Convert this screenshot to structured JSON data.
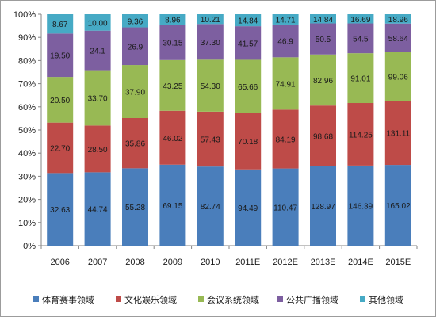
{
  "chart_data": {
    "type": "bar",
    "stacked": "percent",
    "categories": [
      "2006",
      "2007",
      "2008",
      "2009",
      "2010",
      "2011E",
      "2012E",
      "2013E",
      "2014E",
      "2015E"
    ],
    "series": [
      {
        "name": "体育赛事领域",
        "color": "#4a7ebb",
        "values": [
          32.63,
          44.74,
          55.28,
          69.15,
          82.74,
          94.49,
          110.47,
          128.97,
          146.39,
          165.02
        ]
      },
      {
        "name": "文化娱乐领域",
        "color": "#be4b48",
        "values": [
          22.7,
          28.5,
          35.86,
          46.02,
          57.43,
          70.18,
          84.19,
          98.68,
          114.25,
          131.11
        ]
      },
      {
        "name": "会议系统领域",
        "color": "#98b954",
        "values": [
          20.5,
          33.7,
          37.9,
          43.25,
          54.3,
          65.66,
          74.91,
          82.96,
          91.01,
          99.06
        ]
      },
      {
        "name": "公共广播领域",
        "color": "#7d5fa0",
        "values": [
          19.5,
          24.1,
          26.9,
          30.15,
          37.3,
          41.57,
          46.9,
          50.5,
          54.5,
          58.64
        ]
      },
      {
        "name": "其他领域",
        "color": "#46aac5",
        "values": [
          8.67,
          10.0,
          9.36,
          8.96,
          10.21,
          14.84,
          14.71,
          14.84,
          16.69,
          18.96
        ]
      }
    ],
    "labels": [
      [
        "32.63",
        "44.74",
        "55.28",
        "69.15",
        "82.74",
        "94.49",
        "110.47",
        "128.97",
        "146.39",
        "165.02"
      ],
      [
        "22.70",
        "28.50",
        "35.86",
        "46.02",
        "57.43",
        "70.18",
        "84.19",
        "98.68",
        "114.25",
        "131.11"
      ],
      [
        "20.50",
        "33.70",
        "37.90",
        "43.25",
        "54.30",
        "65.66",
        "74.91",
        "82.96",
        "91.01",
        "99.06"
      ],
      [
        "19.50",
        "24.1",
        "26.9",
        "30.15",
        "37.30",
        "41.57",
        "46.9",
        "50.5",
        "54.5",
        "58.64"
      ],
      [
        "8.67",
        "10.00",
        "9.36",
        "8.96",
        "10.21",
        "14.84",
        "14.71",
        "14.84",
        "16.69",
        "18.96"
      ]
    ],
    "yticks": [
      "0%",
      "10%",
      "20%",
      "30%",
      "40%",
      "50%",
      "60%",
      "70%",
      "80%",
      "90%",
      "100%"
    ],
    "ylim": [
      0,
      100
    ],
    "grid": false,
    "legend": "bottom"
  }
}
